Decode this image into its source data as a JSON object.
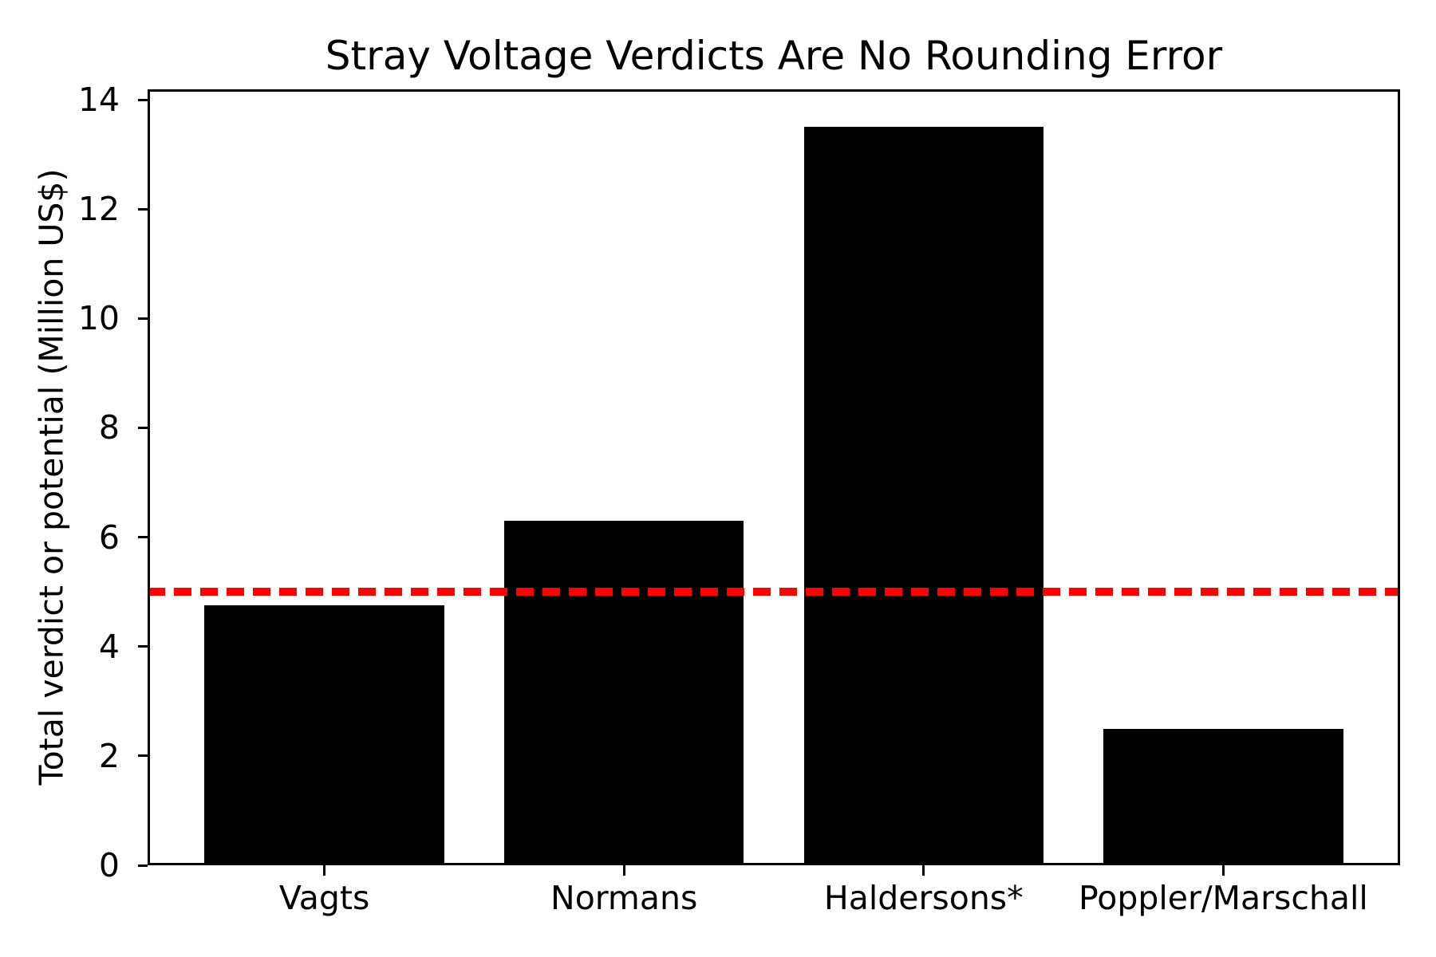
{
  "chart_data": {
    "type": "bar",
    "title": "Stray Voltage Verdicts Are No Rounding Error",
    "ylabel": "Total verdict or potential (Million US$)",
    "xlabel": "",
    "categories": [
      "Vagts",
      "Normans",
      "Haldersons*",
      "Poppler/Marschall"
    ],
    "values": [
      4.75,
      6.3,
      13.5,
      2.5
    ],
    "bar_color": "#000000",
    "ylim": [
      0,
      14.19
    ],
    "yticks": [
      0,
      2,
      4,
      6,
      8,
      10,
      12,
      14
    ],
    "grid": false,
    "reference_line": {
      "value": 5,
      "color": "#ff0000",
      "style": "dashed"
    },
    "bar_width_fraction": 0.8,
    "x_axis_padding": 0.59
  }
}
